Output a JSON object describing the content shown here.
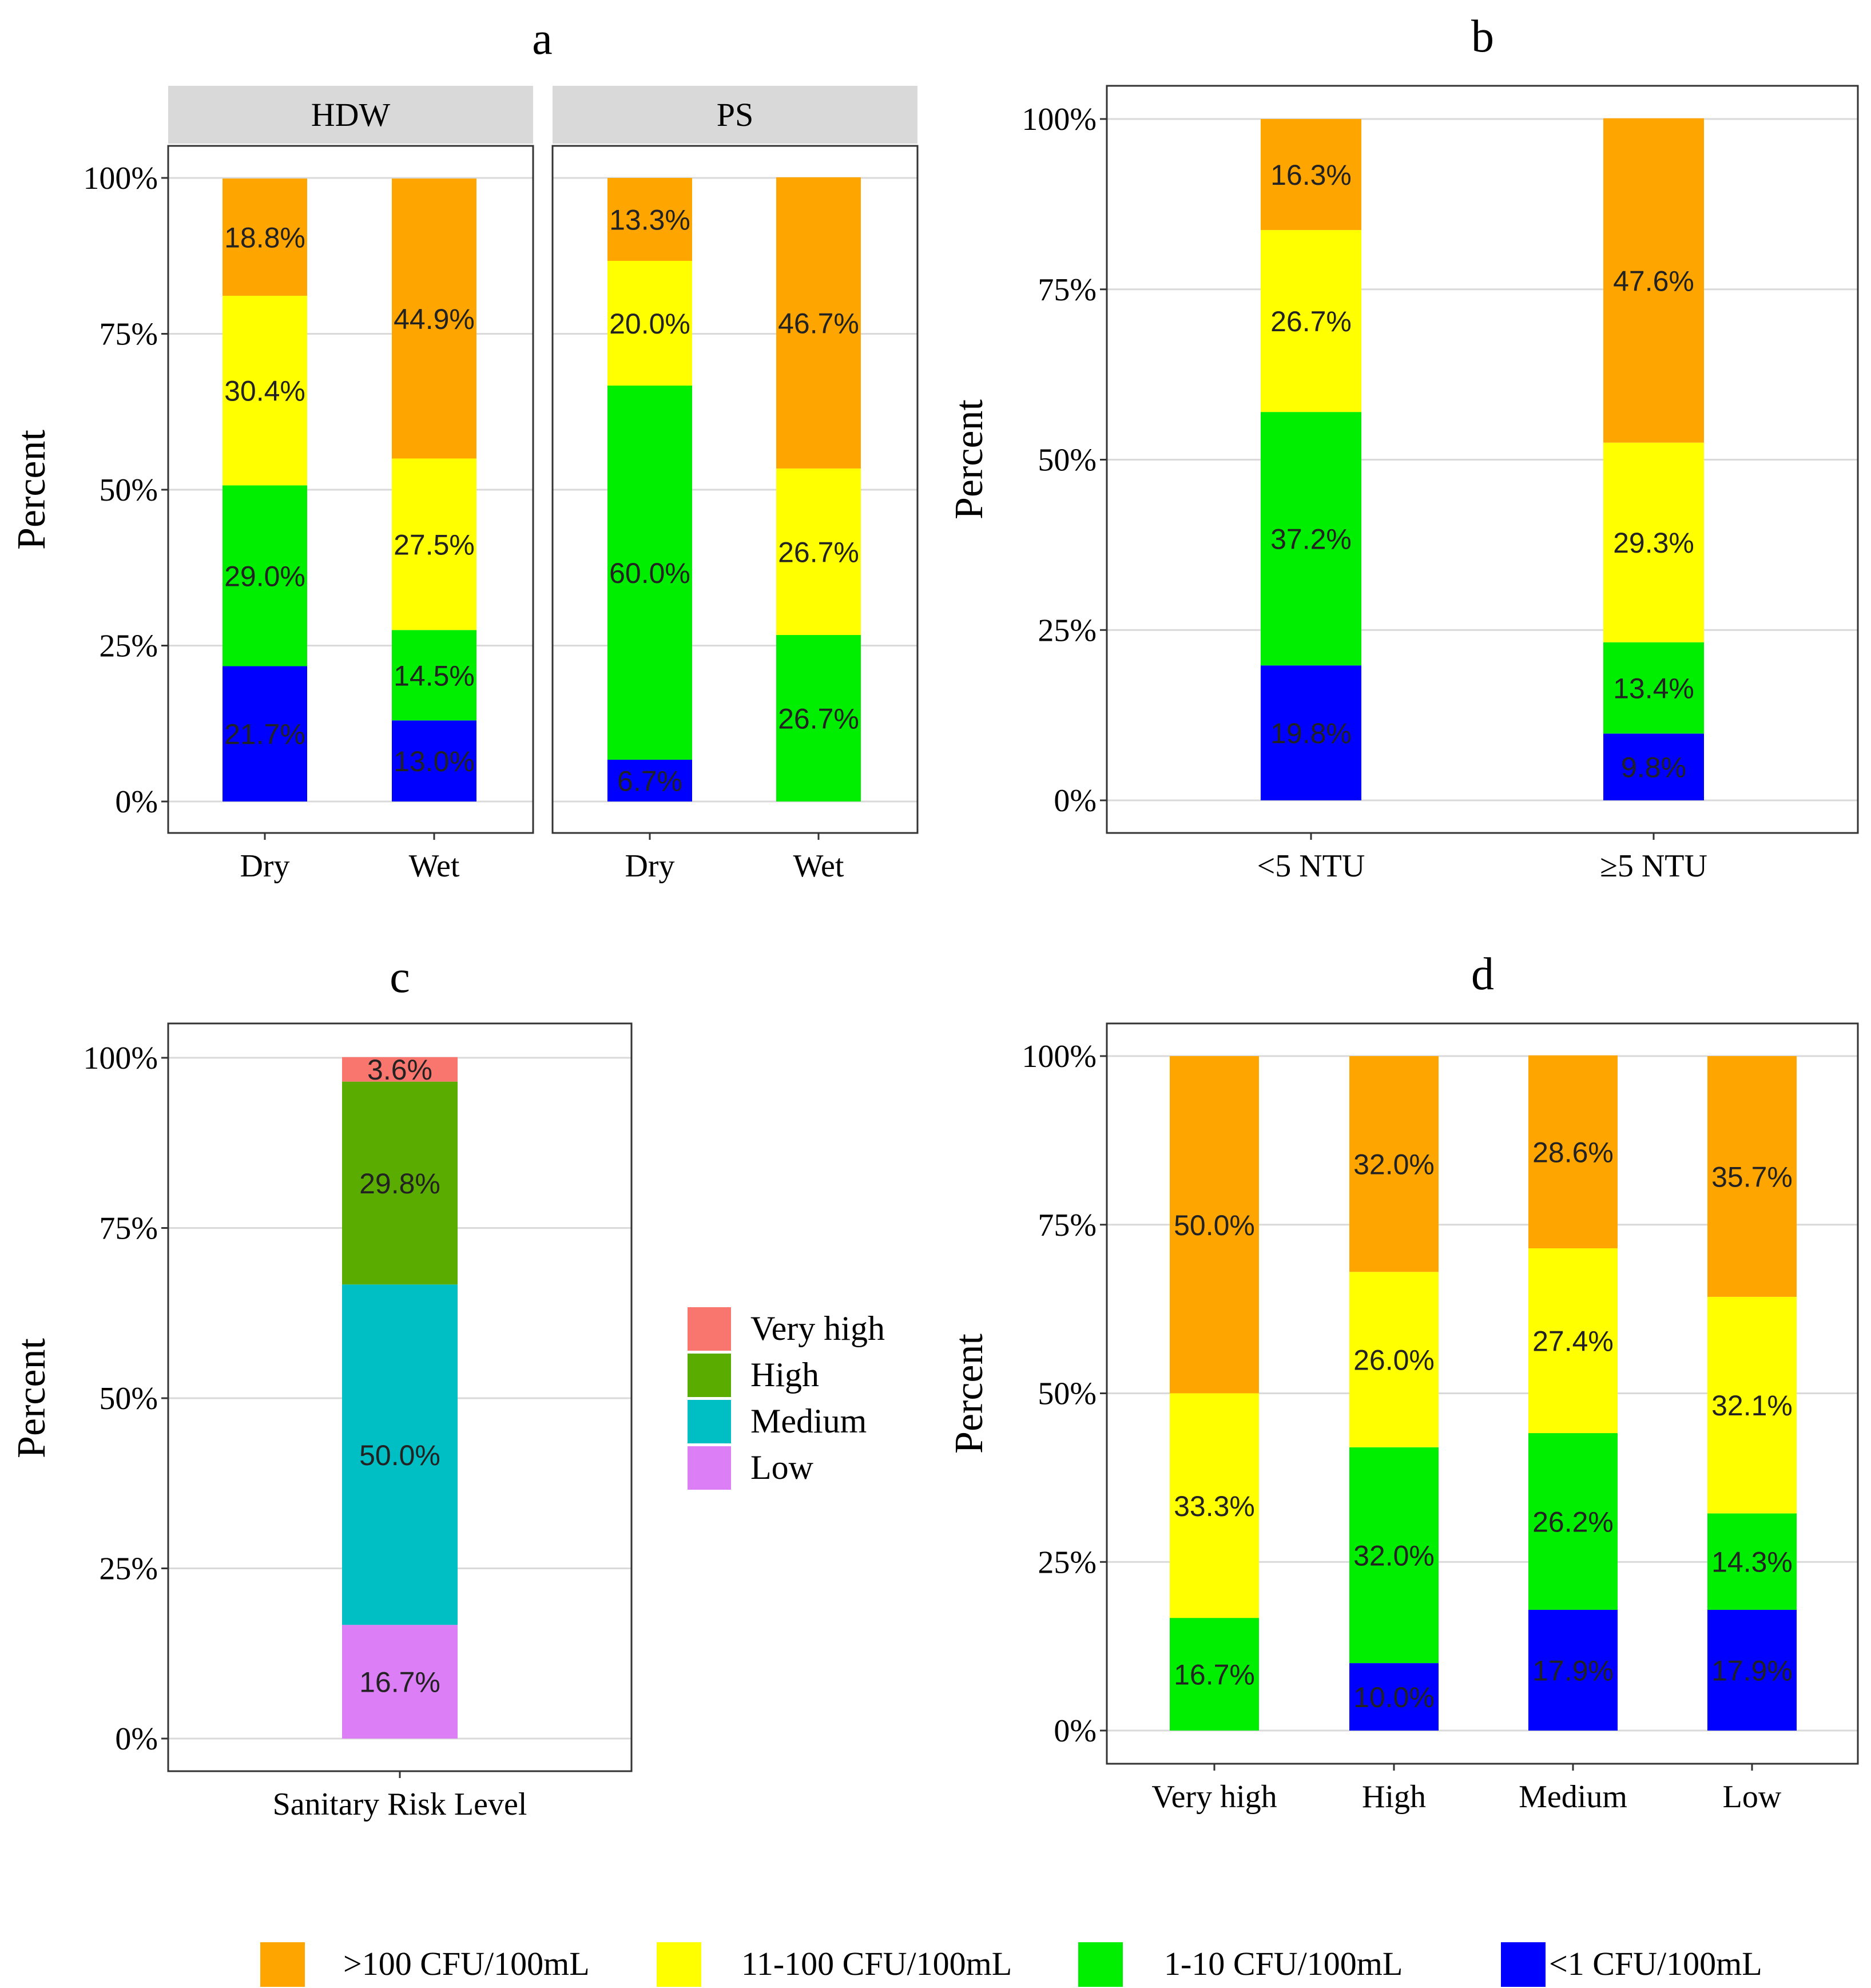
{
  "colors": {
    "over100": "#ffa500",
    "c11to100": "#ffff00",
    "c1to10": "#00ee00",
    "lt1": "#0000ff",
    "veryHigh": "#f8766d",
    "high": "#5aad00",
    "medium": "#00bfc4",
    "low": "#dc7ef5",
    "strip": "#d9d9d9",
    "grid": "#d9d9d9",
    "panelBorder": "#333333"
  },
  "legend": {
    "items": [
      {
        "key": "over100",
        "label": ">100 CFU/100mL"
      },
      {
        "key": "c11to100",
        "label": "11-100 CFU/100mL"
      },
      {
        "key": "c1to10",
        "label": "1-10 CFU/100mL"
      },
      {
        "key": "lt1",
        "label": "<1 CFU/100mL"
      }
    ]
  },
  "chart_data": [
    {
      "panel": "a",
      "type": "bar",
      "stacked": true,
      "title": "a",
      "ylabel": "Percent",
      "ylim": [
        0,
        100
      ],
      "yticks": [
        "0%",
        "25%",
        "50%",
        "75%",
        "100%"
      ],
      "facets": [
        {
          "strip": "HDW",
          "categories": [
            "Dry",
            "Wet"
          ],
          "series": [
            {
              "key": "lt1",
              "values": [
                21.7,
                13.0
              ],
              "labels": [
                "21.7%",
                "13.0%"
              ]
            },
            {
              "key": "c1to10",
              "values": [
                29.0,
                14.5
              ],
              "labels": [
                "29.0%",
                "14.5%"
              ]
            },
            {
              "key": "c11to100",
              "values": [
                30.4,
                27.5
              ],
              "labels": [
                "30.4%",
                "27.5%"
              ]
            },
            {
              "key": "over100",
              "values": [
                18.8,
                44.9
              ],
              "labels": [
                "18.8%",
                "44.9%"
              ]
            }
          ]
        },
        {
          "strip": "PS",
          "categories": [
            "Dry",
            "Wet"
          ],
          "series": [
            {
              "key": "lt1",
              "values": [
                6.7,
                0
              ],
              "labels": [
                "6.7%",
                ""
              ]
            },
            {
              "key": "c1to10",
              "values": [
                60.0,
                26.7
              ],
              "labels": [
                "60.0%",
                "26.7%"
              ]
            },
            {
              "key": "c11to100",
              "values": [
                20.0,
                26.7
              ],
              "labels": [
                "20.0%",
                "26.7%"
              ]
            },
            {
              "key": "over100",
              "values": [
                13.3,
                46.7
              ],
              "labels": [
                "13.3%",
                "46.7%"
              ]
            }
          ]
        }
      ]
    },
    {
      "panel": "b",
      "type": "bar",
      "stacked": true,
      "title": "b",
      "ylabel": "Percent",
      "ylim": [
        0,
        100
      ],
      "yticks": [
        "0%",
        "25%",
        "50%",
        "75%",
        "100%"
      ],
      "categories": [
        "<5 NTU",
        "≥5 NTU"
      ],
      "series": [
        {
          "key": "lt1",
          "values": [
            19.8,
            9.8
          ],
          "labels": [
            "19.8%",
            "9.8%"
          ]
        },
        {
          "key": "c1to10",
          "values": [
            37.2,
            13.4
          ],
          "labels": [
            "37.2%",
            "13.4%"
          ]
        },
        {
          "key": "c11to100",
          "values": [
            26.7,
            29.3
          ],
          "labels": [
            "26.7%",
            "29.3%"
          ]
        },
        {
          "key": "over100",
          "values": [
            16.3,
            47.6
          ],
          "labels": [
            "16.3%",
            "47.6%"
          ]
        }
      ]
    },
    {
      "panel": "c",
      "type": "bar",
      "stacked": true,
      "title": "c",
      "ylabel": "Percent",
      "ylim": [
        0,
        100
      ],
      "yticks": [
        "0%",
        "25%",
        "50%",
        "75%",
        "100%"
      ],
      "categories": [
        "Sanitary Risk Level"
      ],
      "series": [
        {
          "key": "low",
          "values": [
            16.7
          ],
          "labels": [
            "16.7%"
          ]
        },
        {
          "key": "medium",
          "values": [
            50.0
          ],
          "labels": [
            "50.0%"
          ]
        },
        {
          "key": "high",
          "values": [
            29.8
          ],
          "labels": [
            "29.8%"
          ]
        },
        {
          "key": "veryHigh",
          "values": [
            3.6
          ],
          "labels": [
            "3.6%"
          ]
        }
      ],
      "legend": [
        {
          "key": "veryHigh",
          "label": "Very high"
        },
        {
          "key": "high",
          "label": "High"
        },
        {
          "key": "medium",
          "label": "Medium"
        },
        {
          "key": "low",
          "label": "Low"
        }
      ]
    },
    {
      "panel": "d",
      "type": "bar",
      "stacked": true,
      "title": "d",
      "ylabel": "Percent",
      "ylim": [
        0,
        100
      ],
      "yticks": [
        "0%",
        "25%",
        "50%",
        "75%",
        "100%"
      ],
      "categories": [
        "Very high",
        "High",
        "Medium",
        "Low"
      ],
      "series": [
        {
          "key": "lt1",
          "values": [
            0,
            10.0,
            17.9,
            17.9
          ],
          "labels": [
            "",
            "10.0%",
            "17.9%",
            "17.9%"
          ]
        },
        {
          "key": "c1to10",
          "values": [
            16.7,
            32.0,
            26.2,
            14.3
          ],
          "labels": [
            "16.7%",
            "32.0%",
            "26.2%",
            "14.3%"
          ]
        },
        {
          "key": "c11to100",
          "values": [
            33.3,
            26.0,
            27.4,
            32.1
          ],
          "labels": [
            "33.3%",
            "26.0%",
            "27.4%",
            "32.1%"
          ]
        },
        {
          "key": "over100",
          "values": [
            50.0,
            32.0,
            28.6,
            35.7
          ],
          "labels": [
            "50.0%",
            "32.0%",
            "28.6%",
            "35.7%"
          ]
        }
      ]
    }
  ]
}
